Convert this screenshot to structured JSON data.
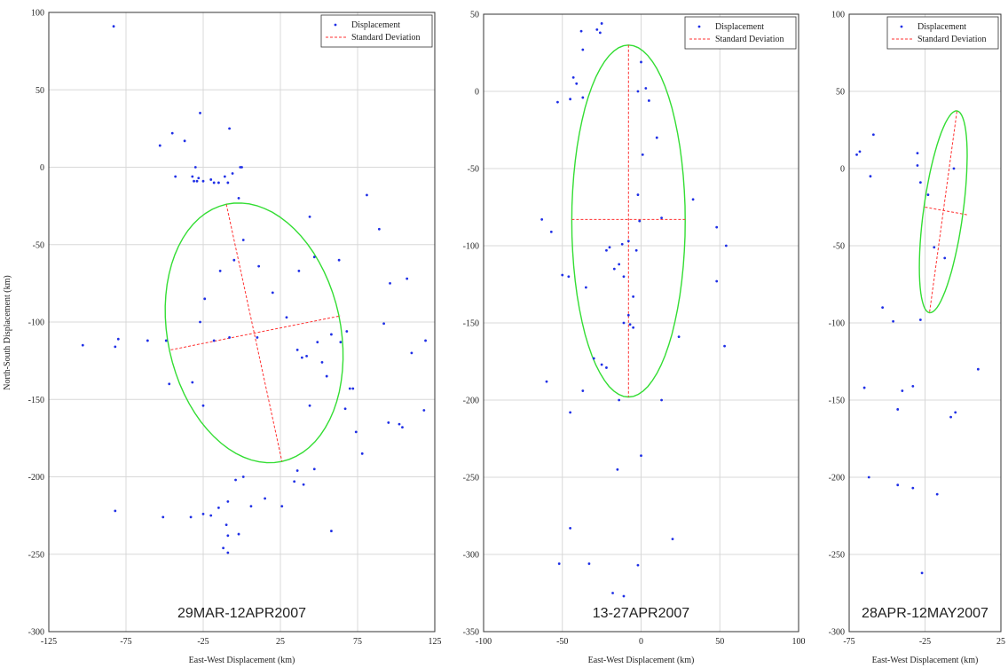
{
  "colors": {
    "displacement": "#1f2fe6",
    "std_dev": "#ff3030",
    "ellipse": "#33dd33",
    "grid": "#d8d8d8"
  },
  "y_axis_label": "North-South Displacement (km)",
  "chart_data": [
    {
      "type": "scatter",
      "panel_label": "29MAR-12APR2007",
      "xlabel": "East-West Displacement (km)",
      "ylabel": "North-South Displacement (km)",
      "xlim": [
        -125,
        125
      ],
      "ylim": [
        -300,
        100
      ],
      "xticks": [
        -125,
        -75,
        -25,
        25,
        75,
        125
      ],
      "yticks": [
        -300,
        -250,
        -200,
        -150,
        -100,
        -50,
        0,
        50,
        100
      ],
      "grid": true,
      "legend": {
        "position": "top-right",
        "entries": [
          "Displacement",
          "Standard Deviation"
        ]
      },
      "series": [
        {
          "name": "Displacement",
          "points": [
            [
              -83,
              91
            ],
            [
              -27,
              35
            ],
            [
              -8,
              25
            ],
            [
              -53,
              14
            ],
            [
              -37,
              17
            ],
            [
              -45,
              22
            ],
            [
              -43,
              -6
            ],
            [
              -32,
              -6
            ],
            [
              -31,
              -9
            ],
            [
              -29,
              -9
            ],
            [
              -28,
              -7
            ],
            [
              -25,
              -9
            ],
            [
              -20,
              -8
            ],
            [
              -15,
              -10
            ],
            [
              -11,
              -6
            ],
            [
              -9,
              -10
            ],
            [
              -6,
              -4
            ],
            [
              -1,
              0
            ],
            [
              0,
              0
            ],
            [
              -30,
              0
            ],
            [
              -18,
              -10
            ],
            [
              -2,
              -20
            ],
            [
              1,
              -47
            ],
            [
              -14,
              -67
            ],
            [
              -24,
              -85
            ],
            [
              -5,
              -60
            ],
            [
              11,
              -64
            ],
            [
              20,
              -81
            ],
            [
              29,
              -97
            ],
            [
              37,
              -67
            ],
            [
              44,
              -32
            ],
            [
              47,
              -58
            ],
            [
              63,
              -60
            ],
            [
              89,
              -40
            ],
            [
              81,
              -18
            ],
            [
              96,
              -75
            ],
            [
              107,
              -72
            ],
            [
              110,
              -120
            ],
            [
              119,
              -112
            ],
            [
              92,
              -101
            ],
            [
              68,
              -106
            ],
            [
              64,
              -113
            ],
            [
              58,
              -108
            ],
            [
              49,
              -113
            ],
            [
              52,
              -126
            ],
            [
              55,
              -135
            ],
            [
              42,
              -122
            ],
            [
              36,
              -118
            ],
            [
              39,
              -123
            ],
            [
              44,
              -154
            ],
            [
              70,
              -143
            ],
            [
              72,
              -143
            ],
            [
              74,
              -171
            ],
            [
              78,
              -185
            ],
            [
              67,
              -156
            ],
            [
              95,
              -165
            ],
            [
              104,
              -168
            ],
            [
              102,
              -166
            ],
            [
              118,
              -157
            ],
            [
              -8,
              -110
            ],
            [
              -18,
              -112
            ],
            [
              -27,
              -100
            ],
            [
              -32,
              -139
            ],
            [
              -47,
              -140
            ],
            [
              -25,
              -154
            ],
            [
              -49,
              -112
            ],
            [
              -61,
              -112
            ],
            [
              -80,
              -111
            ],
            [
              -82,
              -116
            ],
            [
              -103,
              -115
            ],
            [
              -82,
              -222
            ],
            [
              -51,
              -226
            ],
            [
              -33,
              -226
            ],
            [
              -25,
              -224
            ],
            [
              -20,
              -225
            ],
            [
              -15,
              -220
            ],
            [
              -9,
              -216
            ],
            [
              -4,
              -202
            ],
            [
              1,
              -200
            ],
            [
              6,
              -219
            ],
            [
              15,
              -214
            ],
            [
              -10,
              -231
            ],
            [
              -9,
              -238
            ],
            [
              -12,
              -246
            ],
            [
              -9,
              -249
            ],
            [
              -2,
              -237
            ],
            [
              26,
              -219
            ],
            [
              34,
              -203
            ],
            [
              36,
              -196
            ],
            [
              40,
              -205
            ],
            [
              47,
              -195
            ],
            [
              58,
              -235
            ],
            [
              10,
              -110
            ]
          ]
        },
        {
          "name": "Standard Deviation",
          "lines": [
            [
              [
                -10,
                -24
              ],
              [
                26,
                -190
              ]
            ],
            [
              [
                -46,
                -118
              ],
              [
                64,
                -96
              ]
            ]
          ]
        }
      ],
      "ellipse": {
        "center": [
          8,
          -107
        ],
        "semi_major": 85,
        "semi_minor": 56,
        "major_axis_angle_deg": -77.8
      }
    },
    {
      "type": "scatter",
      "panel_label": "13-27APR2007",
      "xlabel": "East-West Displacement (km)",
      "ylabel": "",
      "xlim": [
        -100,
        100
      ],
      "ylim": [
        -350,
        50
      ],
      "xticks": [
        -100,
        -50,
        0,
        50,
        100
      ],
      "yticks": [
        -350,
        -300,
        -250,
        -200,
        -150,
        -100,
        -50,
        0,
        50
      ],
      "grid": true,
      "legend": {
        "position": "top-right",
        "entries": [
          "Displacement",
          "Standard Deviation"
        ]
      },
      "series": [
        {
          "name": "Displacement",
          "points": [
            [
              -25,
              44
            ],
            [
              -26,
              38
            ],
            [
              -28,
              40
            ],
            [
              -38,
              39
            ],
            [
              -37,
              27
            ],
            [
              -43,
              9
            ],
            [
              -41,
              5
            ],
            [
              -53,
              -7
            ],
            [
              -45,
              -5
            ],
            [
              -37,
              -4
            ],
            [
              0,
              19
            ],
            [
              -2,
              0
            ],
            [
              3,
              2
            ],
            [
              5,
              -6
            ],
            [
              10,
              -30
            ],
            [
              1,
              -41
            ],
            [
              -2,
              -67
            ],
            [
              -1,
              -84
            ],
            [
              13,
              -82
            ],
            [
              33,
              -70
            ],
            [
              -63,
              -83
            ],
            [
              -57,
              -91
            ],
            [
              -20,
              -101
            ],
            [
              -22,
              -103
            ],
            [
              -14,
              -112
            ],
            [
              -17,
              -115
            ],
            [
              -11,
              -120
            ],
            [
              -12,
              -99
            ],
            [
              -3,
              -103
            ],
            [
              -8,
              -97
            ],
            [
              -46,
              -120
            ],
            [
              -50,
              -119
            ],
            [
              -35,
              -127
            ],
            [
              -5,
              -133
            ],
            [
              -8,
              -145
            ],
            [
              -7,
              -151
            ],
            [
              -5,
              -153
            ],
            [
              -11,
              -150
            ],
            [
              48,
              -88
            ],
            [
              54,
              -100
            ],
            [
              48,
              -123
            ],
            [
              53,
              -165
            ],
            [
              24,
              -159
            ],
            [
              -30,
              -173
            ],
            [
              -25,
              -177
            ],
            [
              -22,
              -179
            ],
            [
              -37,
              -194
            ],
            [
              -14,
              -200
            ],
            [
              13,
              -200
            ],
            [
              -60,
              -188
            ],
            [
              -45,
              -208
            ],
            [
              -15,
              -245
            ],
            [
              0,
              -236
            ],
            [
              20,
              -290
            ],
            [
              -45,
              -283
            ],
            [
              -52,
              -306
            ],
            [
              -33,
              -306
            ],
            [
              -2,
              -307
            ],
            [
              -18,
              -325
            ],
            [
              -11,
              -327
            ]
          ]
        },
        {
          "name": "Standard Deviation",
          "lines": [
            [
              [
                -8,
                30
              ],
              [
                -8,
                -198
              ]
            ],
            [
              [
                -44,
                -83
              ],
              [
                28,
                -83
              ]
            ]
          ]
        }
      ],
      "ellipse": {
        "center": [
          -8,
          -84
        ],
        "semi_major": 114,
        "semi_minor": 36,
        "major_axis_angle_deg": 90
      }
    },
    {
      "type": "scatter",
      "panel_label": "28APR-12MAY2007",
      "xlabel": "East-West Displacement (km)",
      "ylabel": "",
      "xlim": [
        -75,
        25
      ],
      "ylim": [
        -300,
        100
      ],
      "xticks": [
        -75,
        -25,
        25
      ],
      "yticks": [
        -300,
        -250,
        -200,
        -150,
        -100,
        -50,
        0,
        50,
        100
      ],
      "grid": true,
      "legend": {
        "position": "top-right",
        "entries": [
          "Displacement",
          "Standard Deviation"
        ]
      },
      "series": [
        {
          "name": "Displacement",
          "points": [
            [
              -70,
              9
            ],
            [
              -68,
              11
            ],
            [
              -59,
              22
            ],
            [
              -61,
              -5
            ],
            [
              -30,
              10
            ],
            [
              -30,
              2
            ],
            [
              -28,
              -9
            ],
            [
              -23,
              -17
            ],
            [
              -6,
              0
            ],
            [
              -19,
              -51
            ],
            [
              -12,
              -58
            ],
            [
              -53,
              -90
            ],
            [
              -46,
              -99
            ],
            [
              -28,
              -98
            ],
            [
              -65,
              -142
            ],
            [
              -40,
              -144
            ],
            [
              -33,
              -141
            ],
            [
              -43,
              -156
            ],
            [
              -5,
              -158
            ],
            [
              -8,
              -161
            ],
            [
              10,
              -130
            ],
            [
              -62,
              -200
            ],
            [
              -43,
              -205
            ],
            [
              -33,
              -207
            ],
            [
              -17,
              -211
            ],
            [
              -27,
              -262
            ]
          ]
        },
        {
          "name": "Standard Deviation",
          "lines": [
            [
              [
                -4,
                37
              ],
              [
                -22,
                -93
              ]
            ],
            [
              [
                -25,
                -25
              ],
              [
                3,
                -30
              ]
            ]
          ]
        }
      ],
      "ellipse": {
        "center": [
          -13,
          -28
        ],
        "semi_major": 66,
        "semi_minor": 13,
        "major_axis_angle_deg": 82.1
      }
    }
  ]
}
